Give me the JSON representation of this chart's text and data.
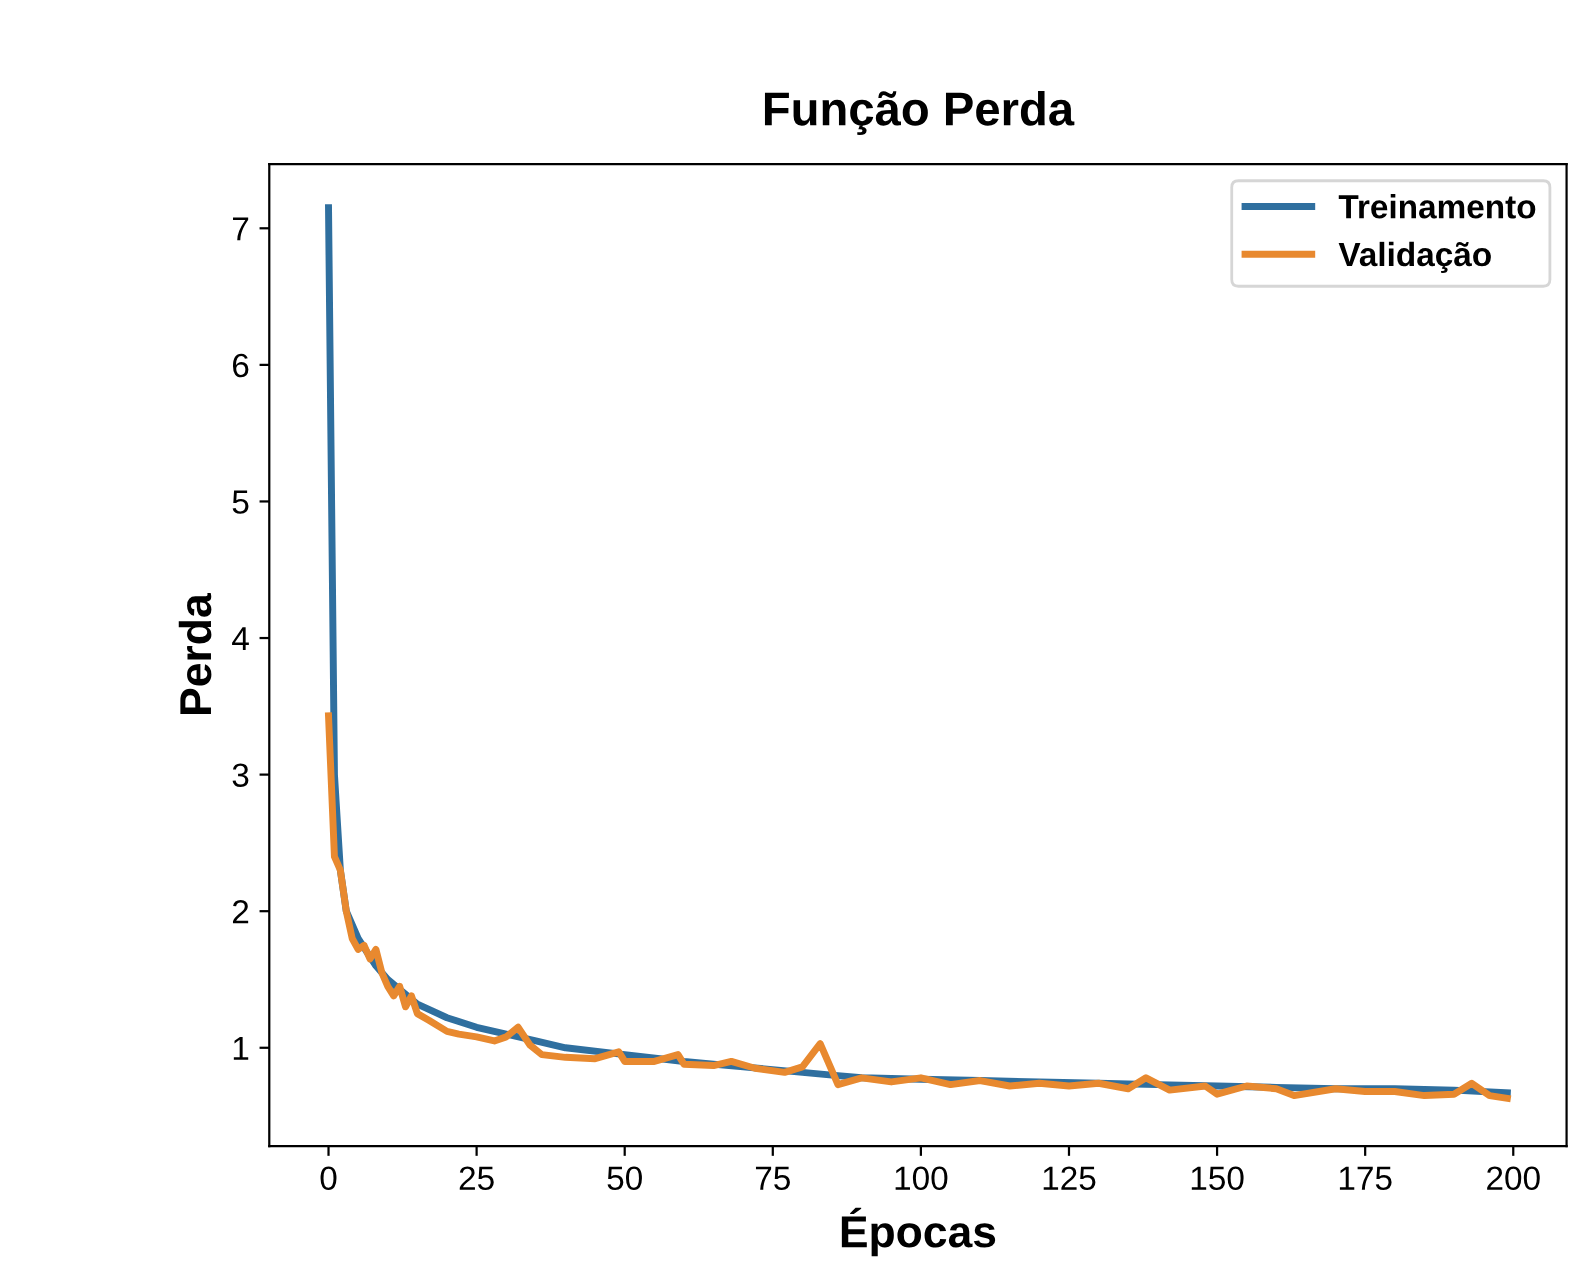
{
  "chart_data": {
    "type": "line",
    "title": "Função Perda",
    "xlabel": "Épocas",
    "ylabel": "Perda",
    "xlim": [
      -10,
      209
    ],
    "ylim": [
      0.28,
      7.47
    ],
    "xticks": [
      0,
      25,
      50,
      75,
      100,
      125,
      150,
      175,
      200
    ],
    "yticks": [
      1,
      2,
      3,
      4,
      5,
      6,
      7
    ],
    "legend": "top right",
    "grid": false,
    "series": [
      {
        "name": "Treinamento",
        "color": "#2f6f9f",
        "x": [
          0,
          1,
          2,
          3,
          5,
          8,
          10,
          15,
          20,
          25,
          30,
          35,
          40,
          50,
          60,
          70,
          80,
          85,
          90,
          100,
          110,
          120,
          130,
          140,
          150,
          160,
          170,
          180,
          190,
          199
        ],
        "values": [
          7.15,
          3.0,
          2.3,
          2.0,
          1.8,
          1.6,
          1.5,
          1.32,
          1.22,
          1.15,
          1.1,
          1.05,
          1.0,
          0.95,
          0.9,
          0.86,
          0.82,
          0.8,
          0.78,
          0.77,
          0.76,
          0.75,
          0.74,
          0.73,
          0.72,
          0.71,
          0.7,
          0.7,
          0.69,
          0.67
        ]
      },
      {
        "name": "Validação",
        "color": "#e8892f",
        "x": [
          0,
          1,
          2,
          3,
          4,
          5,
          6,
          7,
          8,
          9,
          10,
          11,
          12,
          13,
          14,
          15,
          17,
          20,
          22,
          25,
          28,
          30,
          32,
          34,
          36,
          40,
          45,
          49,
          50,
          55,
          59,
          60,
          65,
          68,
          72,
          77,
          80,
          83,
          85,
          86,
          90,
          95,
          100,
          105,
          110,
          115,
          120,
          125,
          130,
          135,
          138,
          142,
          148,
          150,
          155,
          160,
          163,
          170,
          175,
          180,
          185,
          190,
          193,
          196,
          199
        ],
        "values": [
          3.43,
          2.4,
          2.3,
          2.0,
          1.8,
          1.72,
          1.75,
          1.65,
          1.72,
          1.55,
          1.45,
          1.38,
          1.45,
          1.3,
          1.38,
          1.25,
          1.2,
          1.12,
          1.1,
          1.08,
          1.05,
          1.08,
          1.15,
          1.02,
          0.95,
          0.93,
          0.92,
          0.97,
          0.9,
          0.9,
          0.95,
          0.88,
          0.87,
          0.9,
          0.85,
          0.82,
          0.86,
          1.03,
          0.83,
          0.73,
          0.78,
          0.75,
          0.78,
          0.73,
          0.76,
          0.72,
          0.74,
          0.72,
          0.74,
          0.7,
          0.78,
          0.69,
          0.72,
          0.66,
          0.72,
          0.7,
          0.65,
          0.7,
          0.68,
          0.68,
          0.65,
          0.66,
          0.74,
          0.65,
          0.63
        ]
      }
    ]
  }
}
